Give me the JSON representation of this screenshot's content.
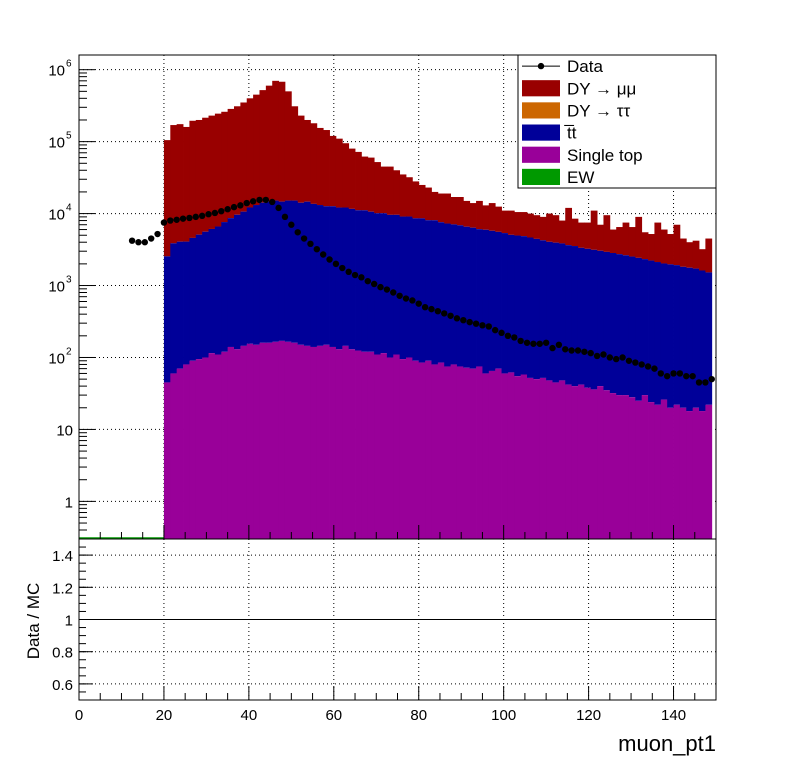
{
  "chart_data": [
    {
      "type": "bar",
      "stacked": true,
      "yscale": "log",
      "xlim": [
        0,
        150
      ],
      "ylim": [
        0.3,
        1600000
      ],
      "bin_width": 1.5,
      "grid": true,
      "legend_position": "top-right",
      "y_ticks": [
        1,
        10,
        100,
        1000,
        10000,
        100000,
        1000000
      ],
      "y_tick_labels": {
        "mantissa": [
          "1",
          "10",
          "10",
          "10",
          "10",
          "10",
          "10"
        ],
        "exponent": [
          "",
          "",
          "2",
          "3",
          "4",
          "5",
          "6"
        ]
      },
      "legend": [
        {
          "name": "Data",
          "marker": "point",
          "color": "#000000"
        },
        {
          "name": "DY → μμ",
          "marker": "fill",
          "color": "#990000"
        },
        {
          "name": "DY → ττ",
          "marker": "fill",
          "color": "#cc6600"
        },
        {
          "name": "t̅t",
          "marker": "fill",
          "color": "#000099"
        },
        {
          "name": "Single top",
          "marker": "fill",
          "color": "#990099"
        },
        {
          "name": "EW",
          "marker": "fill",
          "color": "#009900"
        }
      ],
      "stack_totals": {
        "x": [
          20,
          21.5,
          23,
          24.5,
          26,
          27.5,
          29,
          30.5,
          32,
          33.5,
          35,
          36.5,
          38,
          39.5,
          41,
          42.5,
          44,
          45.5,
          47,
          48.5,
          50,
          51.5,
          53,
          54.5,
          56,
          57.5,
          59,
          60.5,
          62,
          63.5,
          65,
          66.5,
          68,
          69.5,
          71,
          72.5,
          74,
          75.5,
          77,
          78.5,
          80,
          81.5,
          83,
          84.5,
          86,
          87.5,
          89,
          90.5,
          92,
          93.5,
          95,
          96.5,
          98,
          99.5,
          101,
          102.5,
          104,
          105.5,
          107,
          108.5,
          110,
          111.5,
          113,
          114.5,
          116,
          117.5,
          119,
          120.5,
          122,
          123.5,
          125,
          126.5,
          128,
          129.5,
          131,
          132.5,
          134,
          135.5,
          137,
          138.5,
          140,
          141.5,
          143,
          144.5,
          146,
          147.5
        ],
        "dy_mumu": [
          105000,
          170000,
          175000,
          160000,
          195000,
          200000,
          215000,
          230000,
          245000,
          260000,
          285000,
          310000,
          350000,
          400000,
          450000,
          520000,
          600000,
          700000,
          680000,
          500000,
          310000,
          230000,
          200000,
          180000,
          155000,
          145000,
          120000,
          110000,
          95000,
          80000,
          72000,
          62000,
          60000,
          52000,
          45000,
          45000,
          40000,
          35000,
          32000,
          28000,
          25000,
          23000,
          20000,
          19000,
          19000,
          17000,
          17000,
          15000,
          14000,
          15000,
          13000,
          14000,
          12500,
          11000,
          11000,
          10500,
          10500,
          10000,
          9500,
          9000,
          10000,
          9500,
          8000,
          12000,
          8500,
          7500,
          7500,
          11000,
          7000,
          9500,
          6000,
          6500,
          7500,
          6500,
          9000,
          5500,
          5200,
          7500,
          6000,
          5200,
          7000,
          4500,
          4000,
          4200,
          3200,
          4500
        ]
      },
      "series": [
        {
          "name": "Single top",
          "values": [
            45,
            60,
            70,
            80,
            90,
            95,
            100,
            115,
            110,
            120,
            140,
            130,
            145,
            155,
            150,
            160,
            160,
            165,
            170,
            165,
            160,
            150,
            145,
            140,
            145,
            150,
            140,
            130,
            145,
            130,
            125,
            120,
            120,
            110,
            115,
            100,
            110,
            95,
            100,
            90,
            85,
            90,
            80,
            85,
            75,
            80,
            75,
            72,
            70,
            75,
            60,
            65,
            70,
            60,
            62,
            55,
            58,
            52,
            50,
            52,
            48,
            45,
            48,
            42,
            40,
            42,
            38,
            36,
            40,
            35,
            32,
            30,
            30,
            28,
            25,
            30,
            24,
            22,
            26,
            20,
            22,
            20,
            18,
            20,
            18,
            22
          ]
        },
        {
          "name": "t̅t",
          "values": [
            2500,
            3800,
            4000,
            4000,
            4500,
            5000,
            5500,
            6000,
            6500,
            7500,
            8500,
            9500,
            10500,
            12000,
            13000,
            14000,
            14500,
            15000,
            14500,
            15000,
            15000,
            14000,
            14500,
            13500,
            13000,
            12500,
            12500,
            12000,
            12000,
            11500,
            11000,
            11000,
            10500,
            10000,
            10000,
            9500,
            9500,
            9000,
            9000,
            8500,
            8500,
            8000,
            8000,
            7500,
            7200,
            7000,
            6800,
            6500,
            6300,
            6000,
            5900,
            5700,
            5500,
            5300,
            5000,
            4900,
            4800,
            4600,
            4400,
            4200,
            4000,
            3900,
            3800,
            3600,
            3500,
            3300,
            3200,
            3100,
            3000,
            2900,
            2800,
            2700,
            2600,
            2500,
            2400,
            2300,
            2200,
            2100,
            2000,
            1950,
            1900,
            1800,
            1750,
            1700,
            1600,
            1500
          ]
        }
      ],
      "data_points": {
        "x": [
          12.5,
          14,
          15.5,
          17,
          18.5,
          20,
          21.5,
          23,
          24.5,
          26,
          27.5,
          29,
          30.5,
          32,
          33.5,
          35,
          36.5,
          38,
          39.5,
          41,
          42.5,
          44,
          45.5,
          47,
          48.5,
          50,
          51.5,
          53,
          54.5,
          56,
          57.5,
          59,
          60.5,
          62,
          63.5,
          65,
          66.5,
          68,
          69.5,
          71,
          72.5,
          74,
          75.5,
          77,
          78.5,
          80,
          81.5,
          83,
          84.5,
          86,
          87.5,
          89,
          90.5,
          92,
          93.5,
          95,
          96.5,
          98,
          99.5,
          101,
          102.5,
          104,
          105.5,
          107,
          108.5,
          110,
          111.5,
          113,
          114.5,
          116,
          117.5,
          119,
          120.5,
          122,
          123.5,
          125,
          126.5,
          128,
          129.5,
          131,
          132.5,
          134,
          135.5,
          137,
          138.5,
          140,
          141.5,
          143,
          144.5,
          146,
          147.5,
          149
        ],
        "y": [
          4200,
          4000,
          4000,
          4500,
          5200,
          7500,
          8000,
          8200,
          8500,
          8700,
          9000,
          9300,
          9800,
          10200,
          10800,
          11500,
          12300,
          13000,
          14000,
          14800,
          15500,
          15500,
          14500,
          12000,
          9000,
          7000,
          5500,
          4500,
          3800,
          3200,
          2700,
          2300,
          2000,
          1750,
          1550,
          1400,
          1300,
          1150,
          1050,
          950,
          880,
          800,
          720,
          660,
          620,
          560,
          500,
          470,
          440,
          410,
          380,
          350,
          330,
          310,
          295,
          280,
          270,
          240,
          220,
          200,
          190,
          170,
          160,
          155,
          155,
          160,
          135,
          150,
          130,
          125,
          125,
          120,
          115,
          105,
          110,
          100,
          95,
          100,
          90,
          85,
          80,
          75,
          70,
          60,
          55,
          60,
          60,
          55,
          55,
          45,
          45,
          50
        ]
      }
    },
    {
      "type": "scatter",
      "ylim": [
        0.5,
        1.5
      ],
      "y_ticks": [
        0.6,
        0.8,
        1,
        1.2,
        1.4
      ],
      "y_tick_labels": [
        "0.6",
        "0.8",
        "1",
        "1.2",
        "1.4"
      ],
      "x_ticks": [
        0,
        20,
        40,
        60,
        80,
        100,
        120,
        140
      ],
      "x_tick_labels": [
        "0",
        "20",
        "40",
        "60",
        "80",
        "100",
        "120",
        "140"
      ],
      "reference_line": 1,
      "ylabel": "Data / MC",
      "xlabel": "muon_pt1",
      "grid": true
    }
  ]
}
